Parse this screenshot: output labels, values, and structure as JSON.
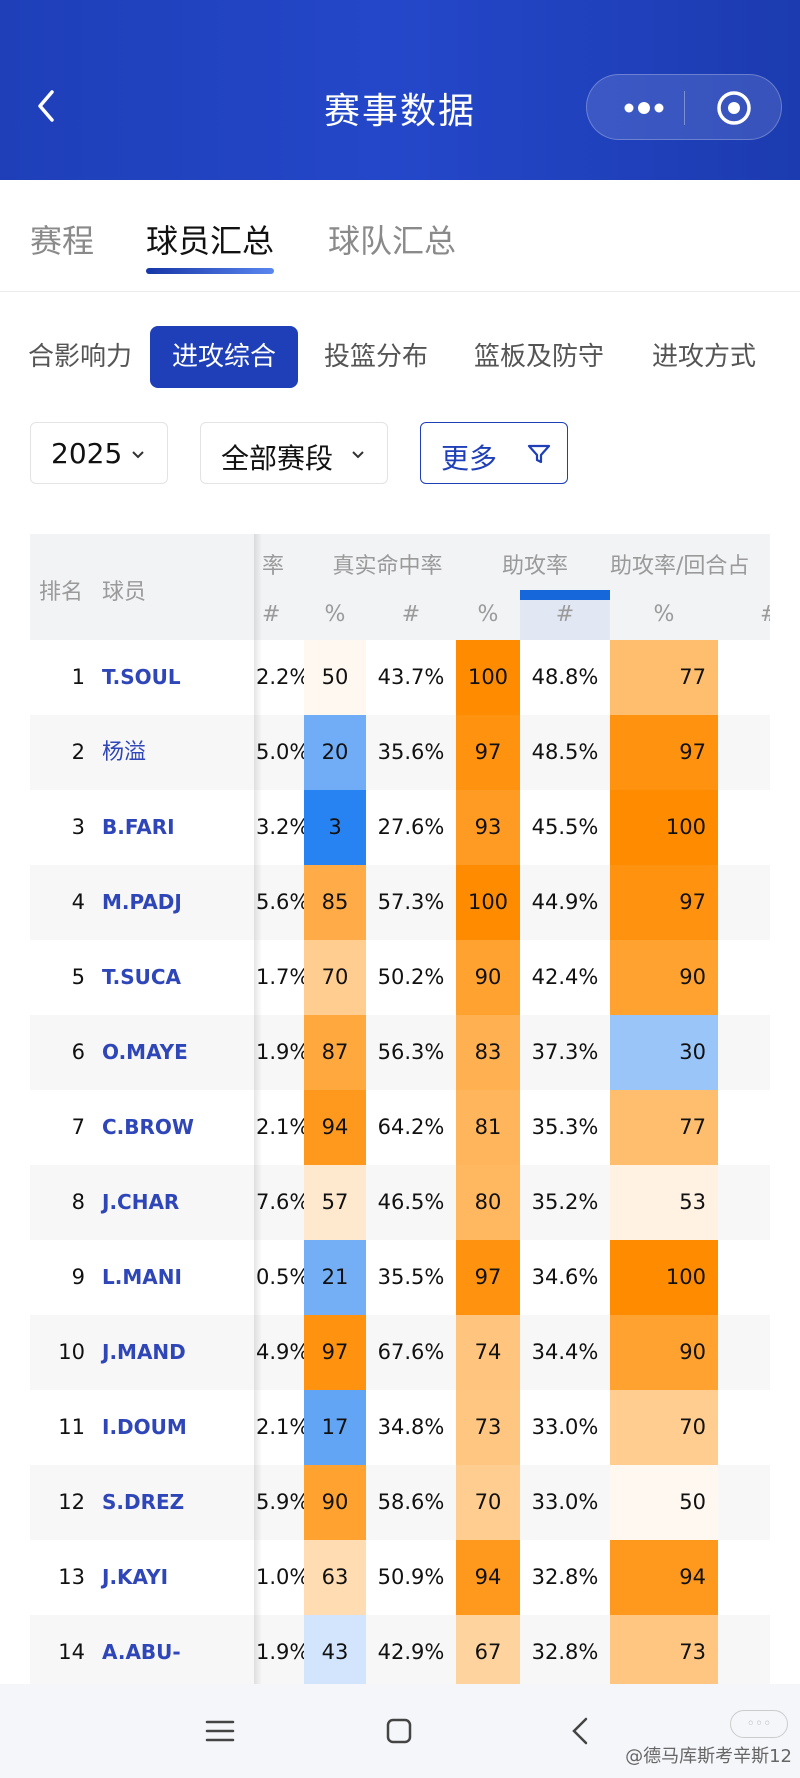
{
  "header": {
    "title": "赛事数据"
  },
  "main_tabs": [
    {
      "label": "赛程",
      "active": false
    },
    {
      "label": "球员汇总",
      "active": true
    },
    {
      "label": "球队汇总",
      "active": false
    }
  ],
  "sub_tabs": [
    {
      "label": "合影响力",
      "active": false
    },
    {
      "label": "进攻综合",
      "active": true
    },
    {
      "label": "投篮分布",
      "active": false
    },
    {
      "label": "篮板及防守",
      "active": false
    },
    {
      "label": "进攻方式",
      "active": false
    }
  ],
  "filters": {
    "season": "2025",
    "stage": "全部赛段",
    "more": "更多"
  },
  "table": {
    "headers": {
      "rank": "排名",
      "player": "球员",
      "col_rate_partial": "率",
      "true_shooting": "真实命中率",
      "assist_rate": "助攻率",
      "assist_rate_poss": "助攻率/回合占"
    },
    "sub_headers": {
      "partial_hash": "#",
      "ts_pct": "%",
      "ts_hash": "#",
      "ast_pct": "%",
      "ast_hash": "#",
      "astp_pct": "%",
      "astp_hash": "#"
    },
    "rows": [
      {
        "rank": "1",
        "player": "T.SOUL",
        "partial": "2.2%",
        "ts_pct_rank": "50",
        "ts_val": "43.7%",
        "ast_pct_rank": "100",
        "ast_val": "48.8%",
        "astp_pct_rank": "77"
      },
      {
        "rank": "2",
        "player": "杨溢",
        "partial": "5.0%",
        "ts_pct_rank": "20",
        "ts_val": "35.6%",
        "ast_pct_rank": "97",
        "ast_val": "48.5%",
        "astp_pct_rank": "97"
      },
      {
        "rank": "3",
        "player": "B.FARI",
        "partial": "3.2%",
        "ts_pct_rank": "3",
        "ts_val": "27.6%",
        "ast_pct_rank": "93",
        "ast_val": "45.5%",
        "astp_pct_rank": "100"
      },
      {
        "rank": "4",
        "player": "M.PADJ",
        "partial": "5.6%",
        "ts_pct_rank": "85",
        "ts_val": "57.3%",
        "ast_pct_rank": "100",
        "ast_val": "44.9%",
        "astp_pct_rank": "97"
      },
      {
        "rank": "5",
        "player": "T.SUCA",
        "partial": "1.7%",
        "ts_pct_rank": "70",
        "ts_val": "50.2%",
        "ast_pct_rank": "90",
        "ast_val": "42.4%",
        "astp_pct_rank": "90"
      },
      {
        "rank": "6",
        "player": "O.MAYE",
        "partial": "1.9%",
        "ts_pct_rank": "87",
        "ts_val": "56.3%",
        "ast_pct_rank": "83",
        "ast_val": "37.3%",
        "astp_pct_rank": "30"
      },
      {
        "rank": "7",
        "player": "C.BROW",
        "partial": "2.1%",
        "ts_pct_rank": "94",
        "ts_val": "64.2%",
        "ast_pct_rank": "81",
        "ast_val": "35.3%",
        "astp_pct_rank": "77"
      },
      {
        "rank": "8",
        "player": "J.CHAR",
        "partial": "7.6%",
        "ts_pct_rank": "57",
        "ts_val": "46.5%",
        "ast_pct_rank": "80",
        "ast_val": "35.2%",
        "astp_pct_rank": "53"
      },
      {
        "rank": "9",
        "player": "L.MANI",
        "partial": "0.5%",
        "ts_pct_rank": "21",
        "ts_val": "35.5%",
        "ast_pct_rank": "97",
        "ast_val": "34.6%",
        "astp_pct_rank": "100"
      },
      {
        "rank": "10",
        "player": "J.MAND",
        "partial": "4.9%",
        "ts_pct_rank": "97",
        "ts_val": "67.6%",
        "ast_pct_rank": "74",
        "ast_val": "34.4%",
        "astp_pct_rank": "90"
      },
      {
        "rank": "11",
        "player": "I.DOUM",
        "partial": "2.1%",
        "ts_pct_rank": "17",
        "ts_val": "34.8%",
        "ast_pct_rank": "73",
        "ast_val": "33.0%",
        "astp_pct_rank": "70"
      },
      {
        "rank": "12",
        "player": "S.DREZ",
        "partial": "5.9%",
        "ts_pct_rank": "90",
        "ts_val": "58.6%",
        "ast_pct_rank": "70",
        "ast_val": "33.0%",
        "astp_pct_rank": "50"
      },
      {
        "rank": "13",
        "player": "J.KAYI",
        "partial": "1.0%",
        "ts_pct_rank": "63",
        "ts_val": "50.9%",
        "ast_pct_rank": "94",
        "ast_val": "32.8%",
        "astp_pct_rank": "94"
      },
      {
        "rank": "14",
        "player": "A.ABU-",
        "partial": "1.9%",
        "ts_pct_rank": "43",
        "ts_val": "42.9%",
        "ast_pct_rank": "67",
        "ast_val": "32.8%",
        "astp_pct_rank": "73"
      }
    ]
  },
  "colors": {
    "primary": "#1e3fb8",
    "heat_high": "#ff8c00",
    "heat_mid": "#ffe6c8",
    "heat_low": "#1a7cf0",
    "link": "#2f46b8"
  },
  "watermark": "@德马库斯考辛斯12"
}
